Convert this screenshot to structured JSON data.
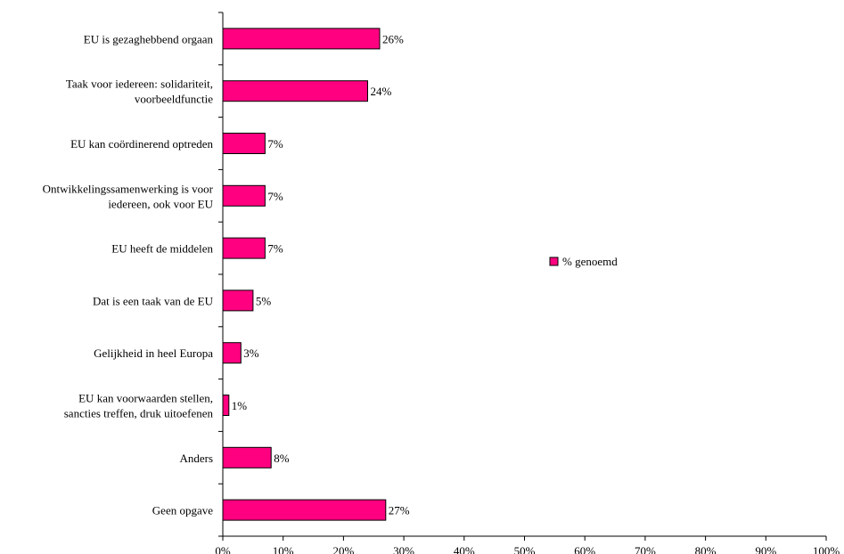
{
  "chart_data": {
    "type": "bar",
    "orientation": "horizontal",
    "categories": [
      [
        "EU is gezaghebbend orgaan"
      ],
      [
        "Taak voor iedereen: solidariteit,",
        "voorbeeldfunctie"
      ],
      [
        "EU kan coördinerend optreden"
      ],
      [
        "Ontwikkelingssamenwerking is voor",
        "iedereen, ook voor EU"
      ],
      [
        "EU heeft de middelen"
      ],
      [
        "Dat is een taak van de EU"
      ],
      [
        "Gelijkheid in heel Europa"
      ],
      [
        "EU kan voorwaarden stellen,",
        "sancties treffen, druk uitoefenen"
      ],
      [
        "Anders"
      ],
      [
        "Geen opgave"
      ]
    ],
    "series": [
      {
        "name": "% genoemd",
        "values": [
          26,
          24,
          7,
          7,
          7,
          5,
          3,
          1,
          8,
          27
        ],
        "labels": [
          "26%",
          "24%",
          "7%",
          "7%",
          "7%",
          "5%",
          "3%",
          "1%",
          "8%",
          "27%"
        ],
        "color": "#ff0080"
      }
    ],
    "xlim": [
      0,
      100
    ],
    "xticks": [
      0,
      10,
      20,
      30,
      40,
      50,
      60,
      70,
      80,
      90,
      100
    ],
    "xtick_labels": [
      "0%",
      "10%",
      "20%",
      "30%",
      "40%",
      "50%",
      "60%",
      "70%",
      "80%",
      "90%",
      "100%"
    ],
    "grid": false,
    "legend": {
      "position": "right",
      "entries": [
        "% genoemd"
      ]
    }
  }
}
